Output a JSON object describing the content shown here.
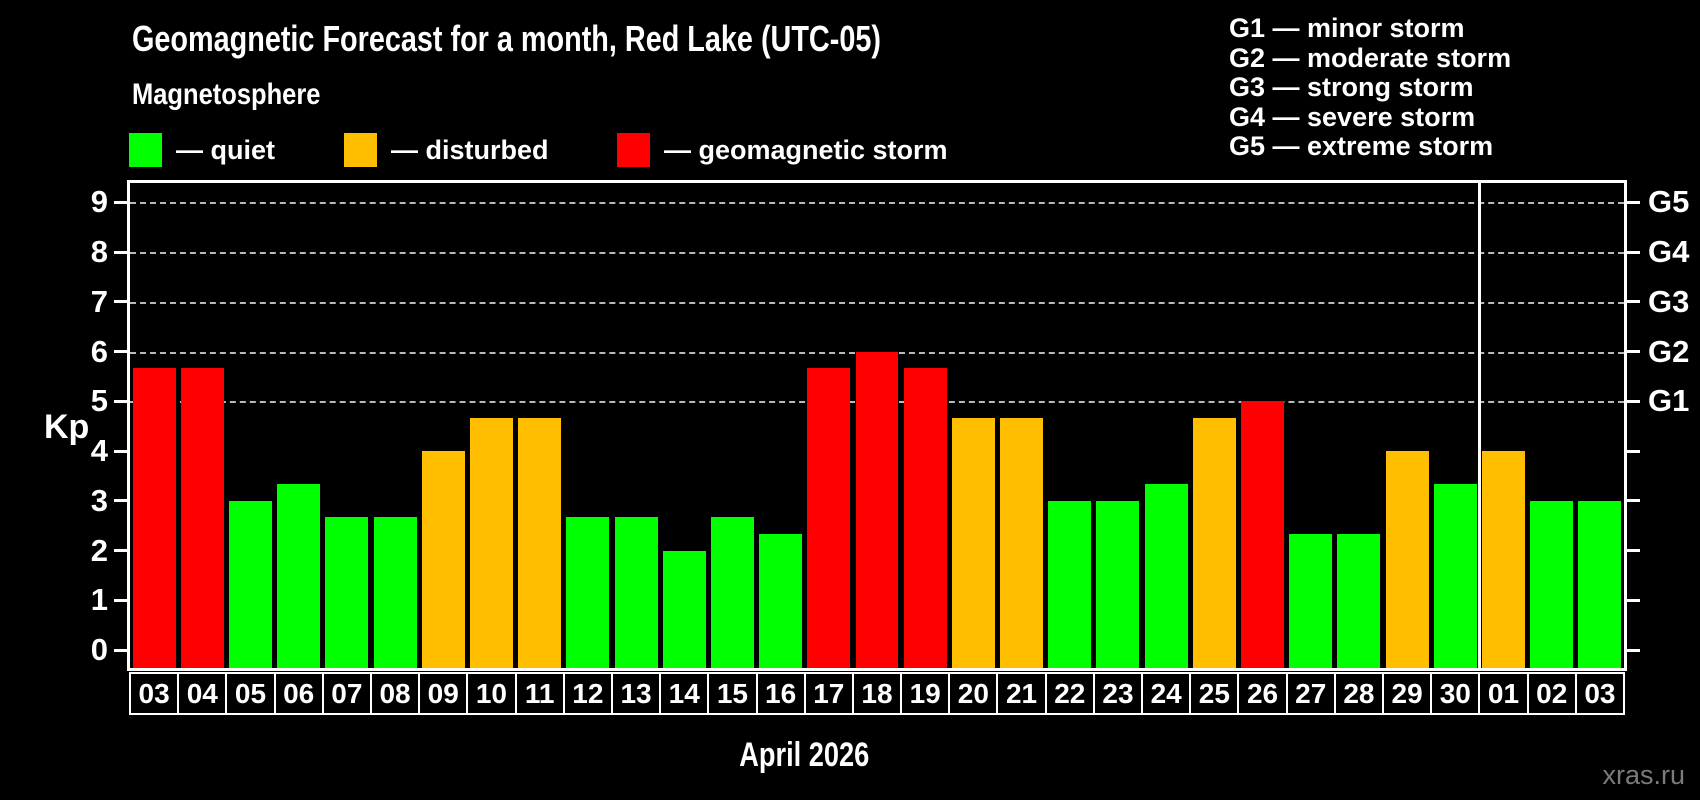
{
  "header": {
    "title": "Geomagnetic Forecast for a month, Red Lake (UTC-05)",
    "subtitle": "Magnetosphere"
  },
  "legend": {
    "items": [
      {
        "name": "quiet",
        "label": "— quiet",
        "color": "#00ff00"
      },
      {
        "name": "disturbed",
        "label": "— disturbed",
        "color": "#ffbe00"
      },
      {
        "name": "storm",
        "label": "— geomagnetic storm",
        "color": "#ff0000"
      }
    ]
  },
  "g_scale_legend": {
    "items": [
      "G1 — minor storm",
      "G2 — moderate storm",
      "G3 — strong storm",
      "G4 — severe storm",
      "G5 — extreme storm"
    ]
  },
  "chart_data": {
    "type": "bar",
    "title": "Geomagnetic Forecast for a month, Red Lake (UTC-05)",
    "subtitle": "Magnetosphere",
    "xlabel": "April 2026",
    "ylabel": "Kp",
    "ylim": [
      0,
      9
    ],
    "yticks": [
      0,
      1,
      2,
      3,
      4,
      5,
      6,
      7,
      8,
      9
    ],
    "gridlines_at_kp": [
      5,
      6,
      7,
      8,
      9
    ],
    "grid": "dashed horizontal at G-storm levels only",
    "legend_position": "top",
    "right_axis_labels": [
      {
        "kp": 5,
        "label": "G1"
      },
      {
        "kp": 6,
        "label": "G2"
      },
      {
        "kp": 7,
        "label": "G3"
      },
      {
        "kp": 8,
        "label": "G4"
      },
      {
        "kp": 9,
        "label": "G5"
      }
    ],
    "status_colors": {
      "quiet": "#00ff00",
      "disturbed": "#ffbe00",
      "storm": "#ff0000"
    },
    "month_separator_before_index": 28,
    "bars": [
      {
        "day": "03",
        "kp": 5.67,
        "status": "storm"
      },
      {
        "day": "04",
        "kp": 5.67,
        "status": "storm"
      },
      {
        "day": "05",
        "kp": 3.0,
        "status": "quiet"
      },
      {
        "day": "06",
        "kp": 3.33,
        "status": "quiet"
      },
      {
        "day": "07",
        "kp": 2.67,
        "status": "quiet"
      },
      {
        "day": "08",
        "kp": 2.67,
        "status": "quiet"
      },
      {
        "day": "09",
        "kp": 4.0,
        "status": "disturbed"
      },
      {
        "day": "10",
        "kp": 4.67,
        "status": "disturbed"
      },
      {
        "day": "11",
        "kp": 4.67,
        "status": "disturbed"
      },
      {
        "day": "12",
        "kp": 2.67,
        "status": "quiet"
      },
      {
        "day": "13",
        "kp": 2.67,
        "status": "quiet"
      },
      {
        "day": "14",
        "kp": 2.0,
        "status": "quiet"
      },
      {
        "day": "15",
        "kp": 2.67,
        "status": "quiet"
      },
      {
        "day": "16",
        "kp": 2.33,
        "status": "quiet"
      },
      {
        "day": "17",
        "kp": 5.67,
        "status": "storm"
      },
      {
        "day": "18",
        "kp": 6.0,
        "status": "storm"
      },
      {
        "day": "19",
        "kp": 5.67,
        "status": "storm"
      },
      {
        "day": "20",
        "kp": 4.67,
        "status": "disturbed"
      },
      {
        "day": "21",
        "kp": 4.67,
        "status": "disturbed"
      },
      {
        "day": "22",
        "kp": 3.0,
        "status": "quiet"
      },
      {
        "day": "23",
        "kp": 3.0,
        "status": "quiet"
      },
      {
        "day": "24",
        "kp": 3.33,
        "status": "quiet"
      },
      {
        "day": "25",
        "kp": 4.67,
        "status": "disturbed"
      },
      {
        "day": "26",
        "kp": 5.0,
        "status": "storm"
      },
      {
        "day": "27",
        "kp": 2.33,
        "status": "quiet"
      },
      {
        "day": "28",
        "kp": 2.33,
        "status": "quiet"
      },
      {
        "day": "29",
        "kp": 4.0,
        "status": "disturbed"
      },
      {
        "day": "30",
        "kp": 3.33,
        "status": "quiet"
      },
      {
        "day": "01",
        "kp": 4.0,
        "status": "disturbed"
      },
      {
        "day": "02",
        "kp": 3.0,
        "status": "quiet"
      },
      {
        "day": "03",
        "kp": 3.0,
        "status": "quiet"
      }
    ]
  },
  "watermark": "xras.ru"
}
